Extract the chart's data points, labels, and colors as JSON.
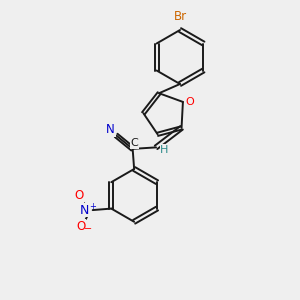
{
  "bg_color": "#efefef",
  "bond_color": "#1a1a1a",
  "atom_colors": {
    "Br": "#cc6600",
    "O": "#ff0000",
    "N_blue": "#0000cc",
    "N_dark": "#0000cc",
    "C": "#1a1a1a",
    "H": "#2e8b8b"
  }
}
